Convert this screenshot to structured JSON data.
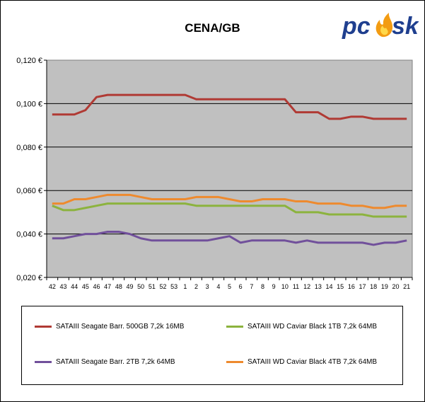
{
  "chart_data": {
    "type": "line",
    "title": "CENA/GB",
    "xlabel": "",
    "ylabel": "",
    "categories": [
      "42",
      "43",
      "44",
      "45",
      "46",
      "47",
      "48",
      "49",
      "50",
      "51",
      "52",
      "53",
      "1",
      "2",
      "3",
      "4",
      "5",
      "6",
      "7",
      "8",
      "9",
      "10",
      "11",
      "12",
      "13",
      "14",
      "15",
      "16",
      "17",
      "18",
      "19",
      "20",
      "21"
    ],
    "ylim": [
      0.02,
      0.12
    ],
    "yticks": [
      0.02,
      0.04,
      0.06,
      0.08,
      0.1,
      0.12
    ],
    "ytick_labels": [
      "0,020 €",
      "0,040 €",
      "0,060 €",
      "0,080 €",
      "0,100 €",
      "0,120 €"
    ],
    "grid": "horizontal",
    "legend_position": "bottom",
    "series": [
      {
        "name": "SATAIII Seagate Barr. 500GB 7,2k 16MB",
        "color": "#b03a34",
        "values": [
          0.095,
          0.095,
          0.095,
          0.097,
          0.103,
          0.104,
          0.104,
          0.104,
          0.104,
          0.104,
          0.104,
          0.104,
          0.104,
          0.102,
          0.102,
          0.102,
          0.102,
          0.102,
          0.102,
          0.102,
          0.102,
          0.102,
          0.096,
          0.096,
          0.096,
          0.093,
          0.093,
          0.094,
          0.094,
          0.093,
          0.093,
          0.093,
          0.093
        ]
      },
      {
        "name": "SATAIII WD Caviar Black 1TB 7,2k 64MB",
        "color": "#8cb33e",
        "values": [
          0.053,
          0.051,
          0.051,
          0.052,
          0.053,
          0.054,
          0.054,
          0.054,
          0.054,
          0.054,
          0.054,
          0.054,
          0.054,
          0.053,
          0.053,
          0.053,
          0.053,
          0.053,
          0.053,
          0.053,
          0.053,
          0.053,
          0.05,
          0.05,
          0.05,
          0.049,
          0.049,
          0.049,
          0.049,
          0.048,
          0.048,
          0.048,
          0.048
        ]
      },
      {
        "name": "SATAIII Seagate Barr. 2TB 7,2k 64MB",
        "color": "#71509b",
        "values": [
          0.038,
          0.038,
          0.039,
          0.04,
          0.04,
          0.041,
          0.041,
          0.04,
          0.038,
          0.037,
          0.037,
          0.037,
          0.037,
          0.037,
          0.037,
          0.038,
          0.039,
          0.036,
          0.037,
          0.037,
          0.037,
          0.037,
          0.036,
          0.037,
          0.036,
          0.036,
          0.036,
          0.036,
          0.036,
          0.035,
          0.036,
          0.036,
          0.037
        ]
      },
      {
        "name": "SATAIII WD Caviar Black 4TB 7,2k 64MB",
        "color": "#ee8a2e",
        "values": [
          0.054,
          0.054,
          0.056,
          0.056,
          0.057,
          0.058,
          0.058,
          0.058,
          0.057,
          0.056,
          0.056,
          0.056,
          0.056,
          0.057,
          0.057,
          0.057,
          0.056,
          0.055,
          0.055,
          0.056,
          0.056,
          0.056,
          0.055,
          0.055,
          0.054,
          0.054,
          0.054,
          0.053,
          0.053,
          0.052,
          0.052,
          0.053,
          0.053
        ]
      }
    ]
  },
  "logo": {
    "text_left": "pc",
    "text_right": "sk",
    "flame_color": "#f39c12",
    "text_color": "#1f3f8f"
  },
  "colors": {
    "plot_background": "#c0c0c0",
    "gridline": "#000000",
    "axis": "#000000"
  }
}
